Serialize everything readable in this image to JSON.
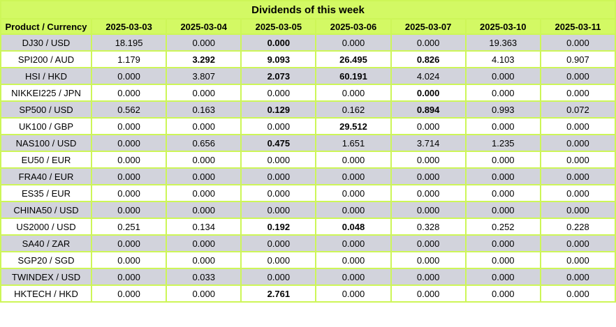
{
  "title": "Dividends of this week",
  "colors": {
    "header_green": "#d3f964",
    "border_green": "#cdf658",
    "row_alt_gray": "#d2d3dc",
    "row_white": "#ffffff",
    "text_black": "#000000"
  },
  "chart_data": {
    "type": "table",
    "title": "Dividends of this week",
    "columns": [
      "Product / Currency",
      "2025-03-03",
      "2025-03-04",
      "2025-03-05",
      "2025-03-06",
      "2025-03-07",
      "2025-03-10",
      "2025-03-11"
    ],
    "rows": [
      {
        "product": "DJ30 / USD",
        "values": [
          "18.195",
          "0.000",
          "0.000",
          "0.000",
          "0.000",
          "19.363",
          "0.000"
        ],
        "bold_columns": [
          2
        ]
      },
      {
        "product": "SPI200 / AUD",
        "values": [
          "1.179",
          "3.292",
          "9.093",
          "26.495",
          "0.826",
          "4.103",
          "0.907"
        ],
        "bold_columns": [
          1,
          2,
          3,
          4
        ]
      },
      {
        "product": "HSI / HKD",
        "values": [
          "0.000",
          "3.807",
          "2.073",
          "60.191",
          "4.024",
          "0.000",
          "0.000"
        ],
        "bold_columns": [
          2,
          3
        ]
      },
      {
        "product": "NIKKEI225 / JPN",
        "values": [
          "0.000",
          "0.000",
          "0.000",
          "0.000",
          "0.000",
          "0.000",
          "0.000"
        ],
        "bold_columns": [
          4
        ]
      },
      {
        "product": "SP500 / USD",
        "values": [
          "0.562",
          "0.163",
          "0.129",
          "0.162",
          "0.894",
          "0.993",
          "0.072"
        ],
        "bold_columns": [
          2,
          4
        ]
      },
      {
        "product": "UK100 / GBP",
        "values": [
          "0.000",
          "0.000",
          "0.000",
          "29.512",
          "0.000",
          "0.000",
          "0.000"
        ],
        "bold_columns": [
          3
        ]
      },
      {
        "product": "NAS100 / USD",
        "values": [
          "0.000",
          "0.656",
          "0.475",
          "1.651",
          "3.714",
          "1.235",
          "0.000"
        ],
        "bold_columns": [
          2
        ]
      },
      {
        "product": "EU50 / EUR",
        "values": [
          "0.000",
          "0.000",
          "0.000",
          "0.000",
          "0.000",
          "0.000",
          "0.000"
        ],
        "bold_columns": []
      },
      {
        "product": "FRA40 / EUR",
        "values": [
          "0.000",
          "0.000",
          "0.000",
          "0.000",
          "0.000",
          "0.000",
          "0.000"
        ],
        "bold_columns": []
      },
      {
        "product": "ES35 / EUR",
        "values": [
          "0.000",
          "0.000",
          "0.000",
          "0.000",
          "0.000",
          "0.000",
          "0.000"
        ],
        "bold_columns": []
      },
      {
        "product": "CHINA50 / USD",
        "values": [
          "0.000",
          "0.000",
          "0.000",
          "0.000",
          "0.000",
          "0.000",
          "0.000"
        ],
        "bold_columns": []
      },
      {
        "product": "US2000 / USD",
        "values": [
          "0.251",
          "0.134",
          "0.192",
          "0.048",
          "0.328",
          "0.252",
          "0.228"
        ],
        "bold_columns": [
          2,
          3
        ]
      },
      {
        "product": "SA40 / ZAR",
        "values": [
          "0.000",
          "0.000",
          "0.000",
          "0.000",
          "0.000",
          "0.000",
          "0.000"
        ],
        "bold_columns": []
      },
      {
        "product": "SGP20 / SGD",
        "values": [
          "0.000",
          "0.000",
          "0.000",
          "0.000",
          "0.000",
          "0.000",
          "0.000"
        ],
        "bold_columns": []
      },
      {
        "product": "TWINDEX / USD",
        "values": [
          "0.000",
          "0.033",
          "0.000",
          "0.000",
          "0.000",
          "0.000",
          "0.000"
        ],
        "bold_columns": []
      },
      {
        "product": "HKTECH / HKD",
        "values": [
          "0.000",
          "0.000",
          "2.761",
          "0.000",
          "0.000",
          "0.000",
          "0.000"
        ],
        "bold_columns": [
          2
        ]
      }
    ]
  }
}
